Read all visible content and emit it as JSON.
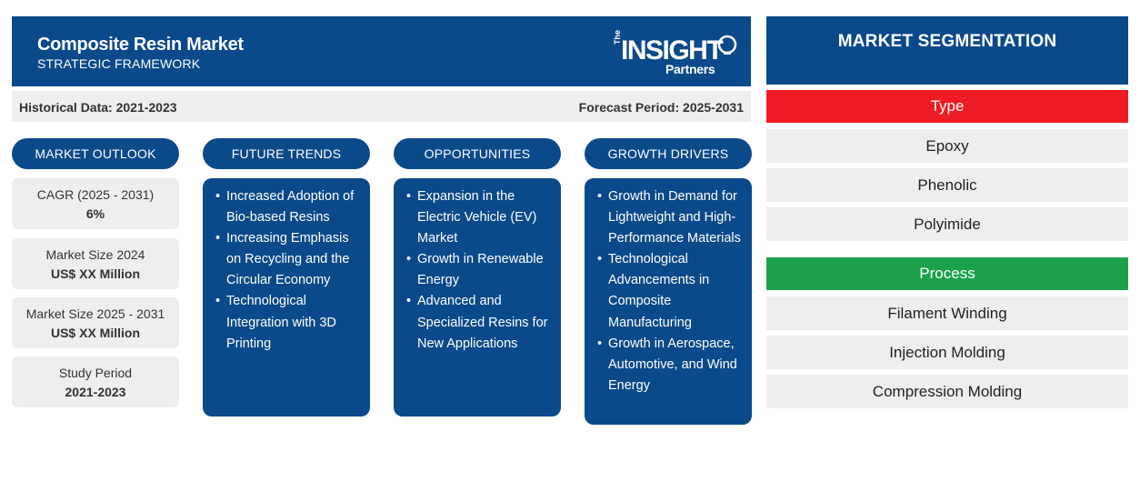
{
  "header": {
    "title": "Composite Resin Market",
    "subtitle": "STRATEGIC FRAMEWORK",
    "logo": {
      "the": "The",
      "insight": "INSIGHT",
      "partners": "Partners"
    }
  },
  "periods": {
    "historical": "Historical Data: 2021-2023",
    "forecast": "Forecast Period: 2025-2031"
  },
  "columns": {
    "outlook": "MARKET OUTLOOK",
    "trends": "FUTURE TRENDS",
    "opportunities": "OPPORTUNITIES",
    "drivers": "GROWTH DRIVERS"
  },
  "outlook": [
    {
      "label": "CAGR (2025 - 2031)",
      "value": "6%"
    },
    {
      "label": "Market Size 2024",
      "value": "US$ XX Million"
    },
    {
      "label": "Market Size 2025 - 2031",
      "value": "US$ XX Million"
    },
    {
      "label": "Study Period",
      "value": "2021-2023"
    }
  ],
  "trends": [
    "Increased Adoption of Bio-based Resins",
    "Increasing Emphasis on Recycling and the Circular Economy",
    "Technological Integration with 3D Printing"
  ],
  "opportunities": [
    "Expansion in the Electric Vehicle (EV) Market",
    "Growth in Renewable Energy",
    "Advanced and Specialized Resins for New Applications"
  ],
  "drivers": [
    "Growth in Demand for Lightweight and High-Performance Materials",
    "Technological Advancements in Composite Manufacturing",
    "Growth in Aerospace, Automotive, and Wind Energy"
  ],
  "segmentation": {
    "title": "MARKET SEGMENTATION",
    "type_label": "Type",
    "type_items": [
      "Epoxy",
      "Phenolic",
      "Polyimide"
    ],
    "process_label": "Process",
    "process_items": [
      "Filament Winding",
      "Injection Molding",
      "Compression Molding"
    ]
  },
  "colors": {
    "primary": "#0a4a8a",
    "type_header": "#ed1c24",
    "process_header": "#1aa14a",
    "card_bg": "#eeeeee"
  }
}
